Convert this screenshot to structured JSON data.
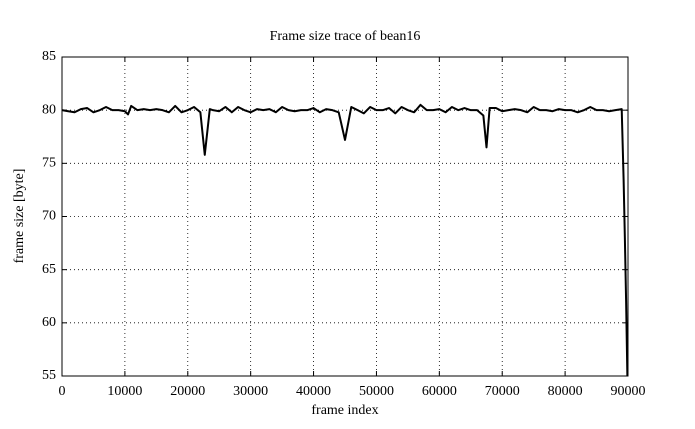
{
  "chart_data": {
    "type": "line",
    "title": "Frame size trace of bean16",
    "x_label": "frame index",
    "y_label": "frame size [byte]",
    "x": [
      0,
      1000,
      2000,
      3000,
      4000,
      5000,
      6000,
      7000,
      8000,
      9000,
      10000,
      10500,
      11000,
      12000,
      13000,
      14000,
      15000,
      16000,
      17000,
      18000,
      19000,
      20000,
      21000,
      22000,
      22700,
      23500,
      24000,
      25000,
      26000,
      27000,
      28000,
      29000,
      30000,
      31000,
      32000,
      33000,
      34000,
      35000,
      36000,
      37000,
      38000,
      39000,
      40000,
      41000,
      42000,
      43000,
      44000,
      45000,
      46000,
      47000,
      48000,
      49000,
      50000,
      51000,
      52000,
      53000,
      54000,
      55000,
      56000,
      57000,
      58000,
      59000,
      60000,
      61000,
      62000,
      63000,
      64000,
      65000,
      66000,
      67000,
      67500,
      68000,
      69000,
      70000,
      71000,
      72000,
      73000,
      74000,
      75000,
      76000,
      77000,
      78000,
      79000,
      80000,
      81000,
      82000,
      83000,
      84000,
      85000,
      86000,
      87000,
      88000,
      89000,
      89300,
      89500,
      89700,
      89900
    ],
    "series": [
      {
        "color": "#000000",
        "values": [
          80.0,
          79.9,
          79.8,
          80.1,
          80.2,
          79.8,
          80.0,
          80.3,
          80.0,
          80.0,
          79.9,
          79.6,
          80.4,
          80.0,
          80.1,
          80.0,
          80.1,
          80.0,
          79.8,
          80.4,
          79.8,
          80.0,
          80.3,
          79.8,
          75.8,
          80.1,
          80.0,
          79.9,
          80.3,
          79.8,
          80.3,
          80.0,
          79.8,
          80.1,
          80.0,
          80.1,
          79.8,
          80.3,
          80.0,
          79.9,
          80.0,
          80.0,
          80.2,
          79.8,
          80.1,
          80.0,
          79.8,
          77.2,
          80.3,
          80.0,
          79.7,
          80.3,
          80.0,
          80.0,
          80.2,
          79.7,
          80.3,
          80.0,
          79.8,
          80.5,
          80.0,
          80.0,
          80.1,
          79.8,
          80.3,
          80.0,
          80.2,
          80.0,
          80.0,
          79.5,
          76.5,
          80.2,
          80.2,
          79.9,
          80.0,
          80.1,
          80.0,
          79.8,
          80.3,
          80.0,
          80.0,
          79.9,
          80.1,
          80.0,
          80.0,
          79.8,
          80.0,
          80.3,
          80.0,
          80.0,
          79.9,
          80.0,
          80.1,
          73.5,
          68,
          62,
          55
        ]
      }
    ],
    "xlim": [
      0,
      90000
    ],
    "ylim": [
      55,
      85
    ],
    "xticks": [
      0,
      10000,
      20000,
      30000,
      40000,
      50000,
      60000,
      70000,
      80000,
      90000
    ],
    "yticks": [
      55,
      60,
      65,
      70,
      75,
      80,
      85
    ],
    "grid": true
  }
}
